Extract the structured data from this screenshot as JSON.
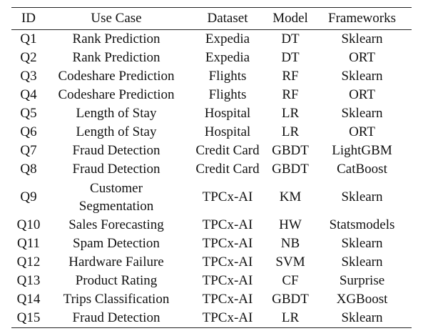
{
  "table": {
    "headers": [
      "ID",
      "Use Case",
      "Dataset",
      "Model",
      "Frameworks"
    ],
    "rows": [
      {
        "id": "Q1",
        "use_case": "Rank Prediction",
        "dataset": "Expedia",
        "model": "DT",
        "framework": "Sklearn"
      },
      {
        "id": "Q2",
        "use_case": "Rank Prediction",
        "dataset": "Expedia",
        "model": "DT",
        "framework": "ORT"
      },
      {
        "id": "Q3",
        "use_case": "Codeshare Prediction",
        "dataset": "Flights",
        "model": "RF",
        "framework": "Sklearn"
      },
      {
        "id": "Q4",
        "use_case": "Codeshare Prediction",
        "dataset": "Flights",
        "model": "RF",
        "framework": "ORT"
      },
      {
        "id": "Q5",
        "use_case": "Length of Stay",
        "dataset": "Hospital",
        "model": "LR",
        "framework": "Sklearn"
      },
      {
        "id": "Q6",
        "use_case": "Length of Stay",
        "dataset": "Hospital",
        "model": "LR",
        "framework": "ORT"
      },
      {
        "id": "Q7",
        "use_case": "Fraud Detection",
        "dataset": "Credit Card",
        "model": "GBDT",
        "framework": "LightGBM"
      },
      {
        "id": "Q8",
        "use_case": "Fraud Detection",
        "dataset": "Credit Card",
        "model": "GBDT",
        "framework": "CatBoost"
      },
      {
        "id": "Q9",
        "use_case_lines": [
          "Customer",
          "Segmentation"
        ],
        "dataset": "TPCx-AI",
        "model": "KM",
        "framework": "Sklearn"
      },
      {
        "id": "Q10",
        "use_case": "Sales Forecasting",
        "dataset": "TPCx-AI",
        "model": "HW",
        "framework": "Statsmodels"
      },
      {
        "id": "Q11",
        "use_case": "Spam Detection",
        "dataset": "TPCx-AI",
        "model": "NB",
        "framework": "Sklearn"
      },
      {
        "id": "Q12",
        "use_case": "Hardware Failure",
        "dataset": "TPCx-AI",
        "model": "SVM",
        "framework": "Sklearn"
      },
      {
        "id": "Q13",
        "use_case": "Product Rating",
        "dataset": "TPCx-AI",
        "model": "CF",
        "framework": "Surprise"
      },
      {
        "id": "Q14",
        "use_case": "Trips Classification",
        "dataset": "TPCx-AI",
        "model": "GBDT",
        "framework": "XGBoost"
      },
      {
        "id": "Q15",
        "use_case": "Fraud Detection",
        "dataset": "TPCx-AI",
        "model": "LR",
        "framework": "Sklearn"
      }
    ]
  }
}
